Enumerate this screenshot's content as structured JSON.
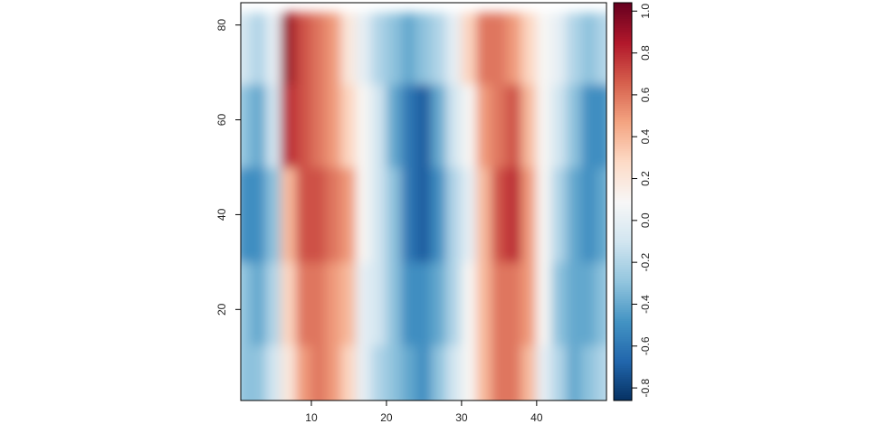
{
  "chart_data": {
    "type": "heatmap",
    "x": [
      1,
      3,
      5,
      7,
      9,
      11,
      13,
      15,
      17,
      19,
      21,
      23,
      25,
      27,
      29,
      31,
      33,
      35,
      37,
      39,
      41,
      43,
      45,
      47,
      49
    ],
    "y": [
      5,
      20,
      40,
      60,
      75
    ],
    "z": [
      [
        -0.3,
        -0.3,
        -0.5,
        -0.3,
        -0.1
      ],
      [
        -0.3,
        -0.4,
        -0.5,
        -0.4,
        -0.2
      ],
      [
        -0.1,
        -0.2,
        -0.3,
        -0.1,
        0.0
      ],
      [
        0.2,
        0.3,
        0.4,
        0.8,
        0.9
      ],
      [
        0.5,
        0.6,
        0.7,
        0.7,
        0.7
      ],
      [
        0.6,
        0.6,
        0.7,
        0.6,
        0.6
      ],
      [
        0.5,
        0.5,
        0.6,
        0.5,
        0.5
      ],
      [
        0.3,
        0.4,
        0.5,
        0.3,
        0.2
      ],
      [
        0.0,
        0.0,
        0.1,
        0.1,
        0.0
      ],
      [
        -0.2,
        -0.1,
        -0.1,
        -0.1,
        -0.2
      ],
      [
        -0.3,
        -0.3,
        -0.3,
        -0.4,
        -0.3
      ],
      [
        -0.4,
        -0.5,
        -0.6,
        -0.6,
        -0.4
      ],
      [
        -0.5,
        -0.5,
        -0.7,
        -0.7,
        -0.3
      ],
      [
        -0.3,
        -0.4,
        -0.5,
        -0.4,
        -0.2
      ],
      [
        -0.1,
        -0.2,
        -0.2,
        -0.1,
        0.0
      ],
      [
        0.1,
        0.1,
        0.0,
        0.1,
        0.3
      ],
      [
        0.4,
        0.4,
        0.4,
        0.5,
        0.6
      ],
      [
        0.6,
        0.6,
        0.7,
        0.6,
        0.6
      ],
      [
        0.6,
        0.6,
        0.8,
        0.7,
        0.5
      ],
      [
        0.4,
        0.5,
        0.5,
        0.4,
        0.3
      ],
      [
        0.0,
        0.1,
        0.1,
        0.1,
        0.1
      ],
      [
        -0.2,
        -0.3,
        -0.2,
        -0.1,
        0.0
      ],
      [
        -0.4,
        -0.4,
        -0.4,
        -0.3,
        -0.2
      ],
      [
        -0.3,
        -0.4,
        -0.5,
        -0.5,
        -0.3
      ],
      [
        -0.2,
        -0.3,
        -0.4,
        -0.5,
        -0.2
      ]
    ],
    "xlim": [
      0.6,
      49.3
    ],
    "ylim": [
      0.8,
      84.7
    ],
    "xticks": [
      10,
      20,
      30,
      40
    ],
    "yticks": [
      20,
      40,
      60,
      80
    ],
    "zlim": [
      -0.86,
      1.04
    ],
    "colorbar_ticks": [
      {
        "value": 1,
        "label": "1.0"
      },
      0.8,
      0.6,
      0.4,
      0.2,
      {
        "value": 0,
        "label": "0.0"
      },
      -0.2,
      -0.4,
      -0.6,
      -0.8
    ],
    "colorscale": [
      "#053061",
      "#2166ac",
      "#4393c3",
      "#92c5de",
      "#d1e5f0",
      "#f7f7f7",
      "#fddbc7",
      "#f4a582",
      "#d6604d",
      "#b2182b",
      "#67001f"
    ]
  }
}
